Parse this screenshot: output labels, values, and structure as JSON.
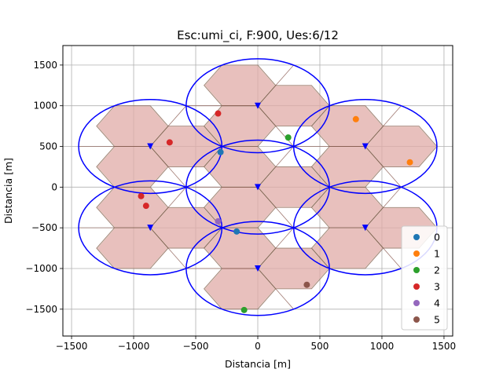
{
  "chart_data": {
    "type": "scatter",
    "title": "Esc:umi_ci, F:900, Ues:6/12",
    "xlabel": "Distancia [m]",
    "ylabel": "Distancia [m]",
    "xlim": [
      -1570,
      1570
    ],
    "ylim": [
      -1830,
      1740
    ],
    "x_ticks": [
      -1500,
      -1000,
      -500,
      0,
      500,
      1000,
      1500
    ],
    "y_ticks": [
      -1500,
      -1000,
      -500,
      0,
      500,
      1000,
      1500
    ],
    "grid": true,
    "legend_position": "lower-right",
    "hex_size": 288.7,
    "cluster_ring_radius": 577.4,
    "coverage_ellipse": {
      "rx": 577,
      "ry": 577
    },
    "sites": [
      {
        "x": 0,
        "y": 0
      },
      {
        "x": 0,
        "y": 1000
      },
      {
        "x": 866,
        "y": 500
      },
      {
        "x": 866,
        "y": -500
      },
      {
        "x": 0,
        "y": -1000
      },
      {
        "x": -866,
        "y": -500
      },
      {
        "x": -866,
        "y": 500
      }
    ],
    "series": [
      {
        "name": "0",
        "color": "#1f77b4",
        "points": [
          {
            "x": -300,
            "y": 430
          },
          {
            "x": -170,
            "y": -545
          }
        ]
      },
      {
        "name": "1",
        "color": "#ff7f0e",
        "points": [
          {
            "x": 790,
            "y": 835
          },
          {
            "x": 1225,
            "y": 305
          }
        ]
      },
      {
        "name": "2",
        "color": "#2ca02c",
        "points": [
          {
            "x": 245,
            "y": 610
          },
          {
            "x": -110,
            "y": -1510
          }
        ]
      },
      {
        "name": "3",
        "color": "#d62728",
        "points": [
          {
            "x": -320,
            "y": 905
          },
          {
            "x": -710,
            "y": 550
          },
          {
            "x": -940,
            "y": -110
          },
          {
            "x": -900,
            "y": -230
          }
        ]
      },
      {
        "name": "4",
        "color": "#9467bd",
        "points": [
          {
            "x": -320,
            "y": -420
          }
        ]
      },
      {
        "name": "5",
        "color": "#8c564b",
        "points": [
          {
            "x": 395,
            "y": -1200
          }
        ]
      }
    ],
    "colors": {
      "sector_fill_red": "#ff9fb0",
      "sector_fill_green": "#8fcf8f",
      "hex_edge": "#8a5a50",
      "site_marker": "#0000ff",
      "coverage_ellipse": "#0000ff"
    }
  }
}
